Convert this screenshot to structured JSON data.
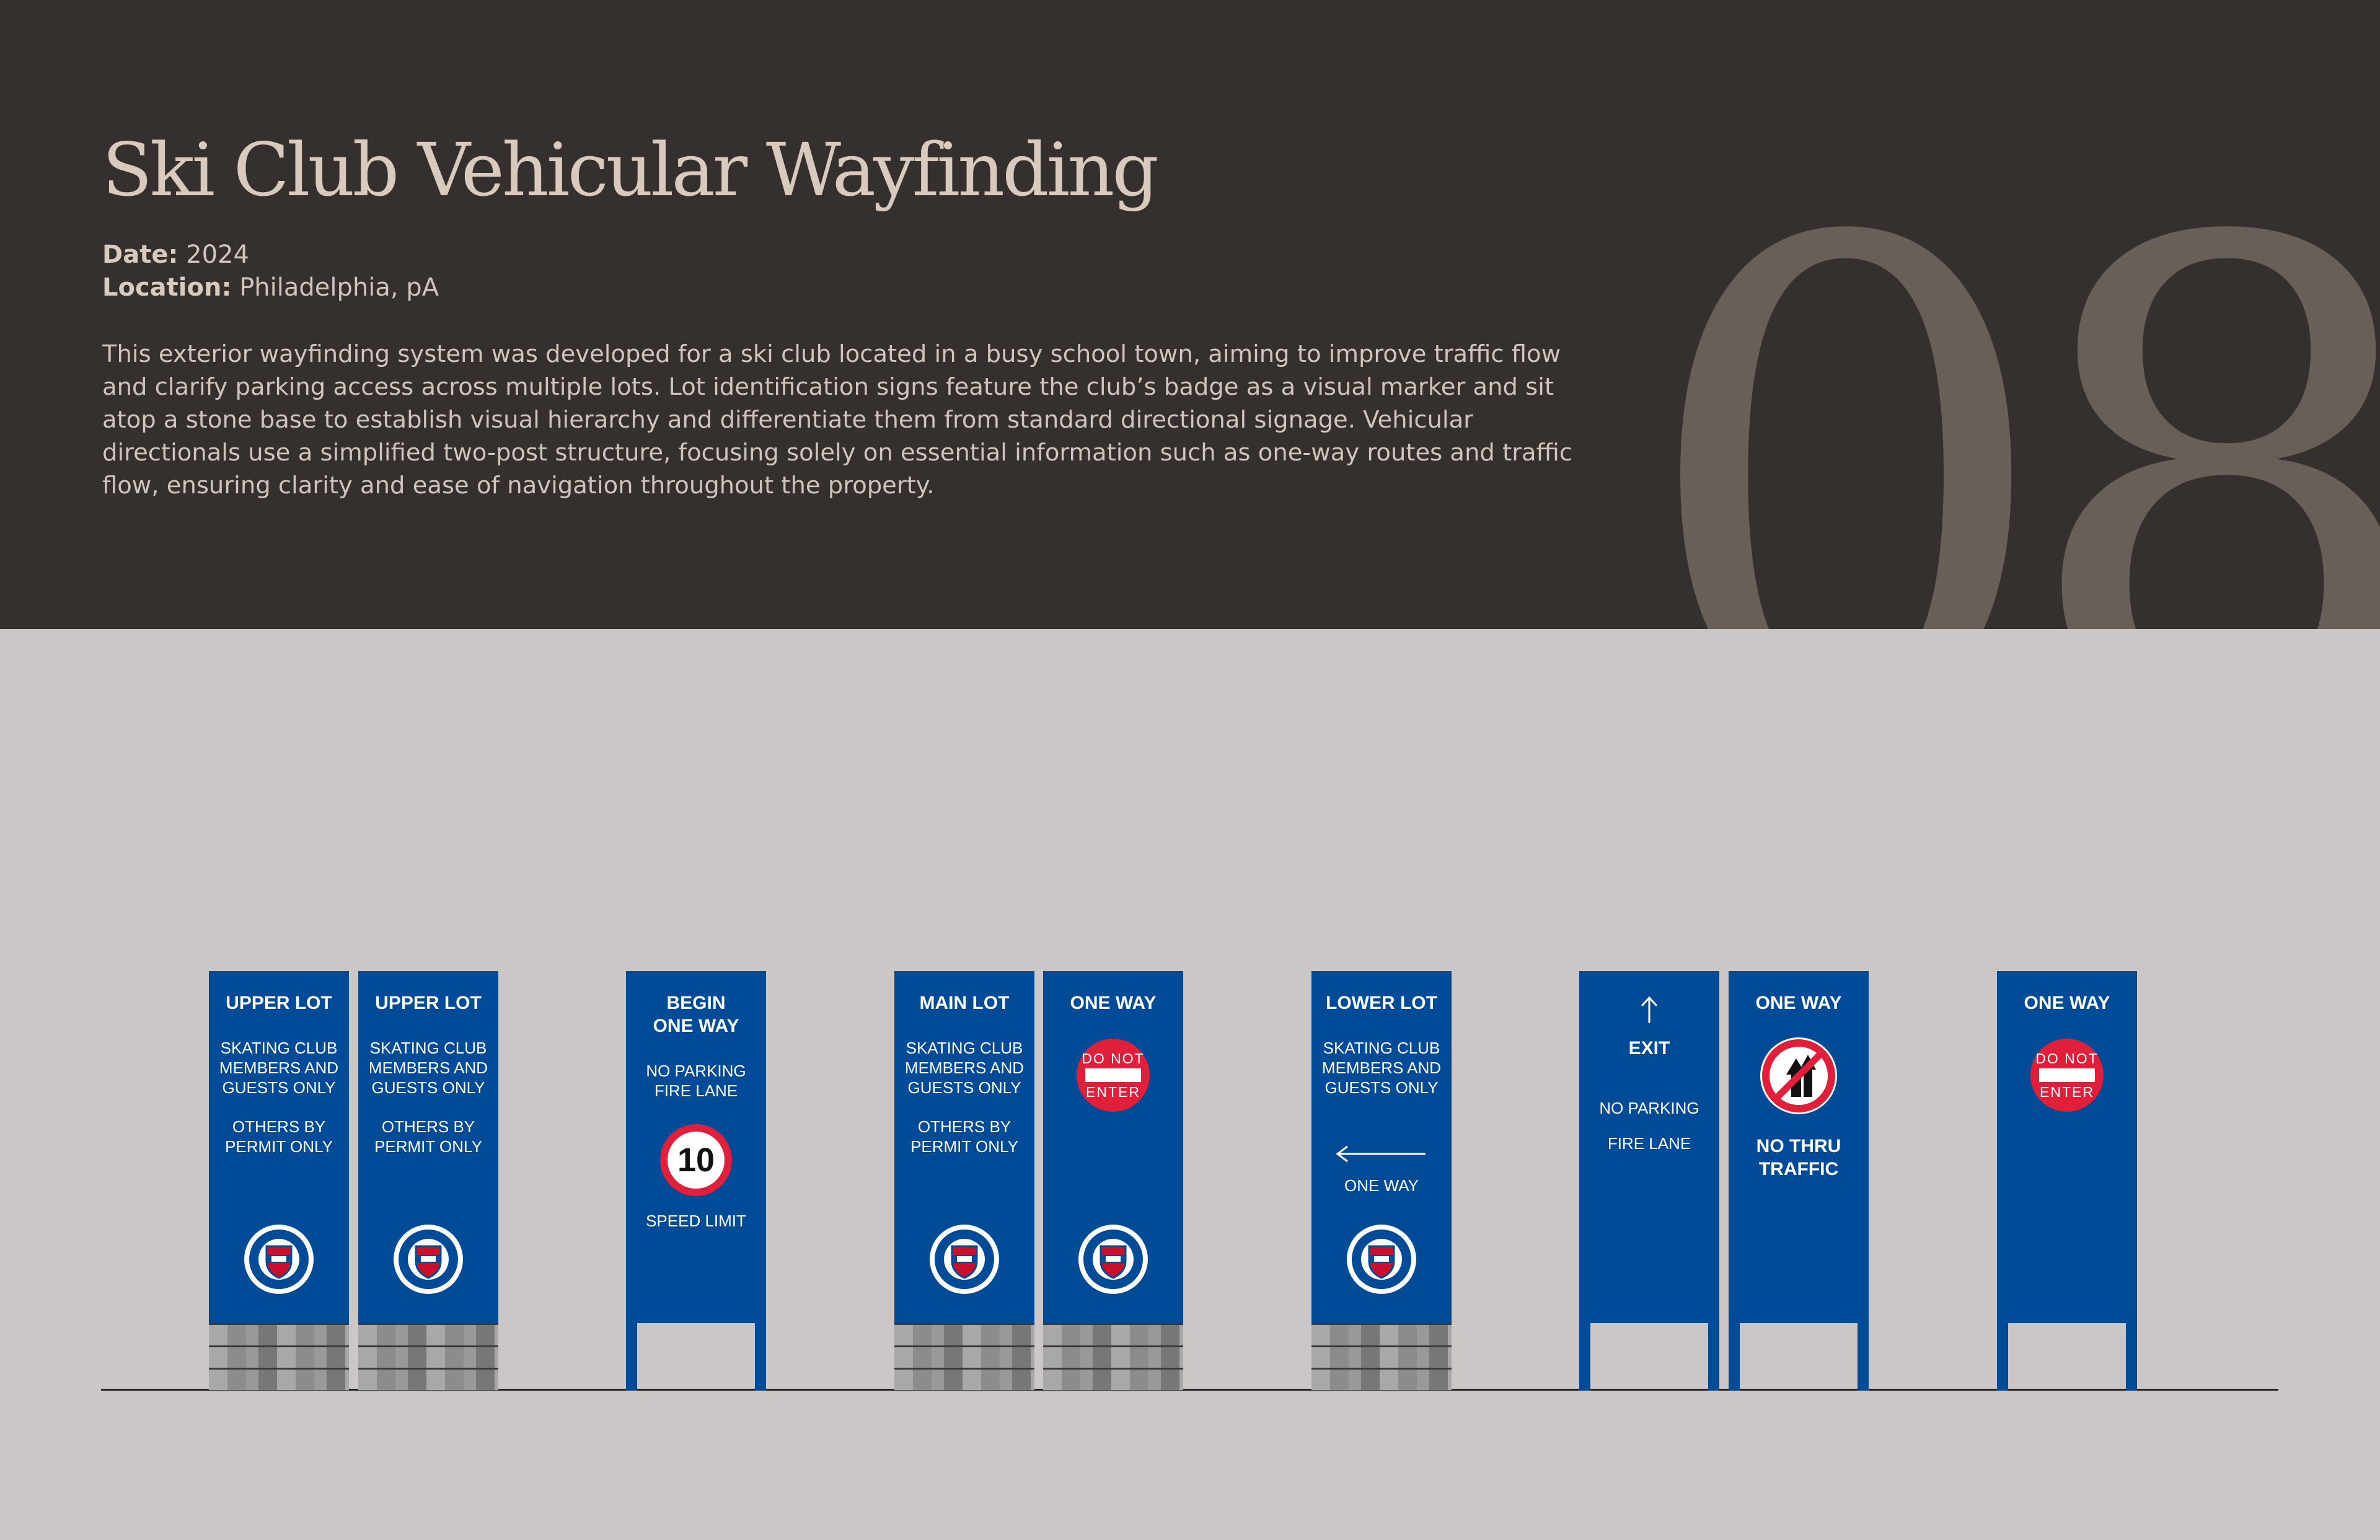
{
  "header": {
    "title": "Ski Club Vehicular Wayfinding",
    "date_label": "Date:",
    "date_value": "2024",
    "location_label": "Location:",
    "location_value": "Philadelphia, pA",
    "description": "This exterior wayfinding system was developed for a ski club located in a busy school town, aiming to improve traffic flow and clarify parking access across multiple lots. Lot identification signs feature the club’s badge as a visual marker and sit atop a stone base to establish visual hierarchy and differentiate them from standard directional signage. Vehicular directionals use a simplified two-post structure, focusing solely on essential information such as one-way routes and traffic flow, ensuring clarity and ease of navigation throughout the property.",
    "number": "08"
  },
  "colors": {
    "sign_blue": "#004b97",
    "header_bg": "#352f2d",
    "page_bg": "#ccc7c7",
    "sign_red": "#e0203a"
  },
  "signs": {
    "upper1": {
      "title": "UPPER LOT",
      "l1": "SKATING CLUB",
      "l2": "MEMBERS AND",
      "l3": "GUESTS ONLY",
      "l4": "OTHERS BY",
      "l5": "PERMIT ONLY"
    },
    "upper2": {
      "title": "UPPER LOT",
      "l1": "SKATING CLUB",
      "l2": "MEMBERS AND",
      "l3": "GUESTS ONLY",
      "l4": "OTHERS BY",
      "l5": "PERMIT ONLY"
    },
    "begin": {
      "t1": "BEGIN",
      "t2": "ONE WAY",
      "l1": "NO PARKING",
      "l2": "FIRE LANE",
      "speed": "10",
      "l3": "SPEED LIMIT"
    },
    "main": {
      "title": "MAIN LOT",
      "l1": "SKATING CLUB",
      "l2": "MEMBERS AND",
      "l3": "GUESTS ONLY",
      "l4": "OTHERS BY",
      "l5": "PERMIT ONLY"
    },
    "oneway1": {
      "title": "ONE WAY",
      "dne1": "DO NOT",
      "dne2": "ENTER"
    },
    "lower": {
      "title": "LOWER LOT",
      "l1": "SKATING CLUB",
      "l2": "MEMBERS AND",
      "l3": "GUESTS ONLY",
      "l4": "ONE WAY"
    },
    "exit": {
      "title": "EXIT",
      "l1": "NO PARKING",
      "l2": "FIRE LANE"
    },
    "nothru": {
      "title": "ONE WAY",
      "t2": "NO THRU",
      "t3": "TRAFFIC"
    },
    "oneway2": {
      "title": "ONE WAY",
      "dne1": "DO NOT",
      "dne2": "ENTER"
    }
  },
  "icons": [
    "club-badge-icon",
    "do-not-enter-icon",
    "speed-limit-icon",
    "left-arrow-icon",
    "up-arrow-icon",
    "no-thru-traffic-icon"
  ]
}
